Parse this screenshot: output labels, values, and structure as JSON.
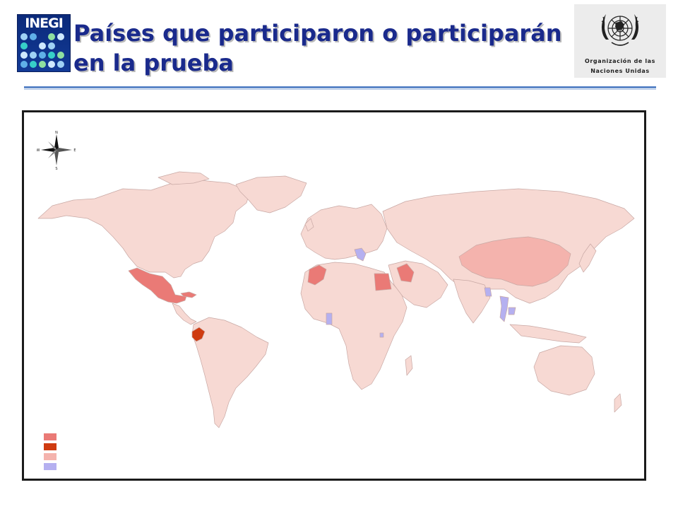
{
  "header": {
    "title_line1": "Países que participaron o participarán",
    "title_line2": "en la prueba",
    "left_logo_text": "INEGI",
    "un_logo_line1": "Organización de las",
    "un_logo_line2": "Naciones Unidas"
  },
  "map": {
    "compass_letters": {
      "n": "N",
      "s": "S",
      "e": "E",
      "w": "W"
    },
    "colors": {
      "base": "#f7d9d3",
      "participated": "#ea7a76",
      "ecuador": "#cf3b10",
      "china": "#f4b3ad",
      "other_group": "#b5b0f0",
      "border": "#c8a8a4"
    },
    "highlighted_countries": [
      {
        "country": "Mexico",
        "group": "participated"
      },
      {
        "country": "Cuba",
        "group": "participated"
      },
      {
        "country": "Morocco",
        "group": "participated"
      },
      {
        "country": "Egypt",
        "group": "participated"
      },
      {
        "country": "Iraq",
        "group": "participated"
      },
      {
        "country": "Ecuador",
        "group": "ecuador"
      },
      {
        "country": "China",
        "group": "china"
      },
      {
        "country": "Greece",
        "group": "other_group"
      },
      {
        "country": "Ghana",
        "group": "other_group"
      },
      {
        "country": "Bangladesh",
        "group": "other_group"
      },
      {
        "country": "Thailand",
        "group": "other_group"
      },
      {
        "country": "Cambodia",
        "group": "other_group"
      },
      {
        "country": "Rwanda",
        "group": "other_group"
      }
    ],
    "legend": [
      {
        "color": "#ea7a76",
        "label": ""
      },
      {
        "color": "#cf3b10",
        "label": ""
      },
      {
        "color": "#f4b3ad",
        "label": ""
      },
      {
        "color": "#b5b0f0",
        "label": ""
      }
    ]
  }
}
